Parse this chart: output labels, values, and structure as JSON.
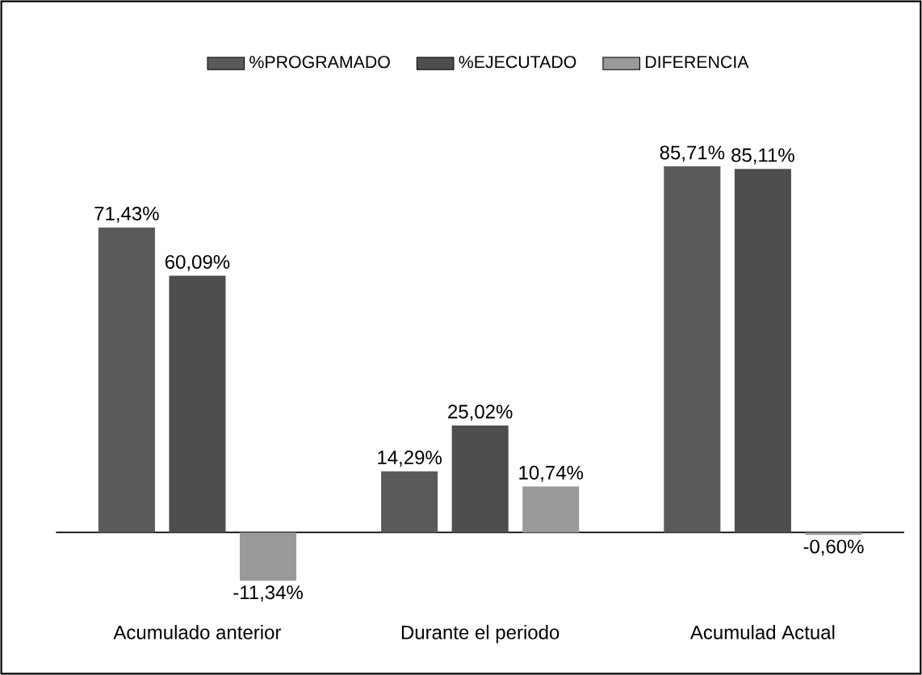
{
  "chart_data": {
    "type": "bar",
    "categories": [
      "Acumulado anterior",
      "Durante el periodo",
      "Acumulad Actual"
    ],
    "series": [
      {
        "name": "%PROGRAMADO",
        "color": "#5a5a5a",
        "values": [
          71.43,
          14.29,
          85.71
        ],
        "value_labels": [
          "71,43%",
          "14,29%",
          "85,71%"
        ]
      },
      {
        "name": "%EJECUTADO",
        "color": "#4e4e4e",
        "values": [
          60.09,
          25.02,
          85.11
        ],
        "value_labels": [
          "60,09%",
          "25,02%",
          "85,11%"
        ]
      },
      {
        "name": "DIFERENCIA",
        "color": "#9a9a9a",
        "values": [
          -11.34,
          10.74,
          -0.6
        ],
        "value_labels": [
          "-11,34%",
          "10,74%",
          "-0,60%"
        ]
      }
    ],
    "legend": "top"
  }
}
